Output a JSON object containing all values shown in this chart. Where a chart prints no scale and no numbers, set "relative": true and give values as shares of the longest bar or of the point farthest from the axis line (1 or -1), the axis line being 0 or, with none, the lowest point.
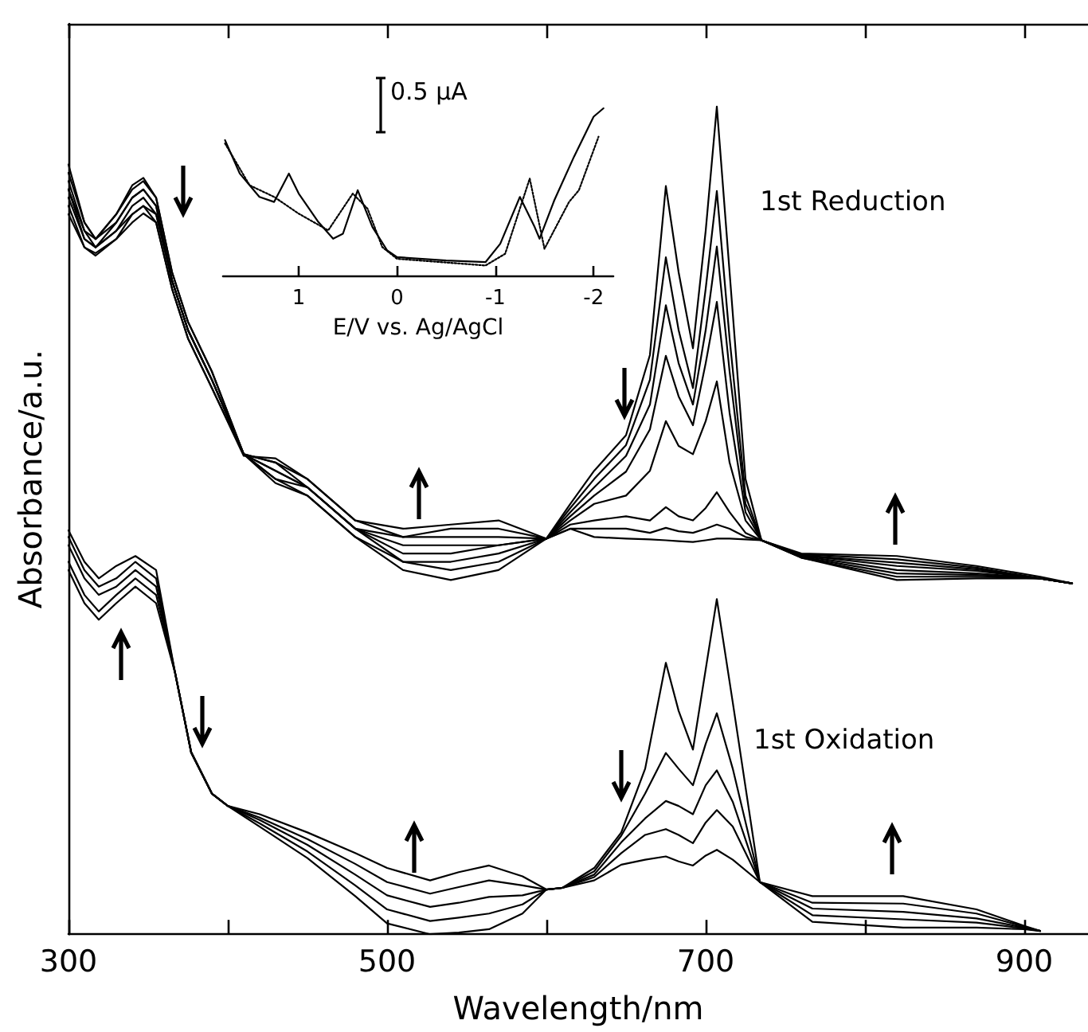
{
  "chart_data": [
    {
      "type": "line",
      "relative": true,
      "xlabel": "Wavelength/nm",
      "ylabel": "Absorbance/a.u.",
      "xlim": [
        300,
        940
      ],
      "xticks": [
        300,
        {
          "value": 400,
          "label": null
        },
        500,
        {
          "value": 600,
          "label": null
        },
        700,
        {
          "value": 800,
          "label": null
        },
        900
      ],
      "annotations": [
        "1st Reduction",
        "1st Oxidation"
      ],
      "series": [
        {
          "color": "#000000",
          "x": [
            300,
            310,
            317,
            330,
            340,
            347,
            355,
            365,
            375,
            390,
            410,
            430,
            450,
            480,
            510,
            540,
            570,
            600,
            615,
            630,
            650,
            665,
            675,
            683,
            692,
            700,
            707,
            715,
            725,
            735,
            760,
            820,
            870,
            910,
            930
          ],
          "values": [
            0.93,
            0.86,
            0.84,
            0.87,
            0.905,
            0.914,
            0.89,
            0.8,
            0.74,
            0.68,
            0.58,
            0.545,
            0.53,
            0.48,
            0.44,
            0.428,
            0.44,
            0.478,
            0.52,
            0.56,
            0.603,
            0.7,
            0.904,
            0.8,
            0.708,
            0.85,
            1.0,
            0.8,
            0.55,
            0.476,
            0.455,
            0.428,
            0.43,
            0.43,
            0.424
          ]
        },
        {
          "color": "#000000",
          "x": [
            300,
            310,
            317,
            330,
            340,
            347,
            355,
            365,
            375,
            390,
            410,
            430,
            450,
            480,
            510,
            540,
            570,
            600,
            615,
            630,
            650,
            665,
            675,
            683,
            692,
            700,
            707,
            715,
            725,
            735,
            760,
            820,
            870,
            910,
            930
          ],
          "values": [
            0.92,
            0.86,
            0.84,
            0.87,
            0.9,
            0.91,
            0.89,
            0.8,
            0.74,
            0.68,
            0.58,
            0.55,
            0.53,
            0.48,
            0.45,
            0.44,
            0.45,
            0.478,
            0.515,
            0.55,
            0.591,
            0.67,
            0.818,
            0.73,
            0.66,
            0.78,
            0.898,
            0.72,
            0.53,
            0.476,
            0.455,
            0.432,
            0.432,
            0.43,
            0.424
          ]
        },
        {
          "color": "#000000",
          "x": [
            300,
            310,
            317,
            330,
            340,
            347,
            355,
            365,
            375,
            390,
            410,
            430,
            450,
            480,
            510,
            540,
            570,
            600,
            615,
            630,
            650,
            665,
            675,
            683,
            692,
            700,
            707,
            715,
            725,
            735,
            760,
            820,
            870,
            910,
            930
          ],
          "values": [
            0.91,
            0.85,
            0.84,
            0.86,
            0.89,
            0.9,
            0.88,
            0.79,
            0.73,
            0.67,
            0.58,
            0.55,
            0.54,
            0.49,
            0.45,
            0.45,
            0.46,
            0.478,
            0.51,
            0.54,
            0.578,
            0.64,
            0.76,
            0.69,
            0.64,
            0.73,
            0.831,
            0.68,
            0.52,
            0.476,
            0.456,
            0.436,
            0.434,
            0.43,
            0.424
          ]
        },
        {
          "color": "#000000",
          "x": [
            300,
            310,
            317,
            330,
            340,
            347,
            355,
            365,
            375,
            390,
            410,
            430,
            450,
            480,
            510,
            540,
            570,
            600,
            615,
            630,
            650,
            665,
            675,
            683,
            692,
            700,
            707,
            715,
            725,
            735,
            760,
            820,
            870,
            910,
            930
          ],
          "values": [
            0.9,
            0.85,
            0.83,
            0.86,
            0.89,
            0.9,
            0.88,
            0.79,
            0.73,
            0.67,
            0.58,
            0.56,
            0.54,
            0.49,
            0.46,
            0.46,
            0.47,
            0.478,
            0.505,
            0.53,
            0.559,
            0.61,
            0.699,
            0.65,
            0.615,
            0.69,
            0.764,
            0.63,
            0.51,
            0.476,
            0.457,
            0.44,
            0.436,
            0.43,
            0.424
          ]
        },
        {
          "color": "#000000",
          "x": [
            300,
            310,
            317,
            330,
            340,
            347,
            355,
            365,
            375,
            390,
            410,
            430,
            450,
            480,
            510,
            540,
            570,
            600,
            615,
            630,
            650,
            665,
            675,
            683,
            692,
            700,
            707,
            715,
            725,
            735,
            760,
            820,
            870,
            910,
            930
          ],
          "values": [
            0.9,
            0.84,
            0.83,
            0.85,
            0.88,
            0.89,
            0.87,
            0.79,
            0.73,
            0.67,
            0.58,
            0.56,
            0.54,
            0.49,
            0.47,
            0.47,
            0.47,
            0.478,
            0.5,
            0.52,
            0.53,
            0.56,
            0.62,
            0.59,
            0.58,
            0.62,
            0.668,
            0.57,
            0.5,
            0.476,
            0.458,
            0.445,
            0.439,
            0.43,
            0.424
          ]
        },
        {
          "color": "#000000",
          "x": [
            300,
            310,
            317,
            330,
            340,
            347,
            355,
            365,
            375,
            390,
            410,
            430,
            450,
            480,
            510,
            540,
            570,
            600,
            615,
            630,
            650,
            665,
            675,
            683,
            692,
            700,
            707,
            715,
            725,
            735,
            760,
            820,
            870,
            910,
            930
          ],
          "values": [
            0.89,
            0.84,
            0.83,
            0.85,
            0.87,
            0.88,
            0.87,
            0.79,
            0.73,
            0.67,
            0.58,
            0.57,
            0.54,
            0.49,
            0.48,
            0.48,
            0.48,
            0.478,
            0.495,
            0.5,
            0.505,
            0.5,
            0.516,
            0.505,
            0.5,
            0.515,
            0.534,
            0.51,
            0.485,
            0.476,
            0.458,
            0.449,
            0.441,
            0.43,
            0.424
          ]
        },
        {
          "color": "#000000",
          "x": [
            300,
            310,
            317,
            330,
            340,
            347,
            355,
            365,
            375,
            390,
            410,
            430,
            450,
            480,
            510,
            540,
            570,
            600,
            615,
            630,
            650,
            665,
            675,
            683,
            692,
            700,
            707,
            715,
            725,
            735,
            760,
            820,
            870,
            910,
            930
          ],
          "values": [
            0.88,
            0.83,
            0.82,
            0.84,
            0.87,
            0.88,
            0.86,
            0.78,
            0.72,
            0.66,
            0.58,
            0.57,
            0.55,
            0.5,
            0.48,
            0.49,
            0.49,
            0.478,
            0.49,
            0.49,
            0.49,
            0.485,
            0.491,
            0.487,
            0.485,
            0.49,
            0.495,
            0.49,
            0.48,
            0.476,
            0.459,
            0.453,
            0.443,
            0.43,
            0.424
          ]
        },
        {
          "color": "#000000",
          "x": [
            300,
            310,
            317,
            330,
            340,
            347,
            355,
            365,
            375,
            390,
            410,
            430,
            450,
            480,
            510,
            540,
            570,
            600,
            615,
            630,
            650,
            665,
            675,
            683,
            692,
            700,
            707,
            715,
            725,
            735,
            760,
            820,
            870,
            910,
            930
          ],
          "values": [
            0.87,
            0.83,
            0.823,
            0.84,
            0.86,
            0.871,
            0.86,
            0.78,
            0.72,
            0.66,
            0.578,
            0.575,
            0.55,
            0.5,
            0.49,
            0.495,
            0.5,
            0.478,
            0.49,
            0.48,
            0.478,
            0.477,
            0.476,
            0.475,
            0.474,
            0.476,
            0.478,
            0.478,
            0.477,
            0.476,
            0.46,
            0.457,
            0.445,
            0.432,
            0.424
          ]
        },
        {
          "color": "#000000",
          "x": [
            300,
            310,
            319,
            330,
            342,
            355,
            367,
            377,
            390,
            400,
            420,
            450,
            480,
            500,
            527,
            545,
            564,
            585,
            600,
            610,
            630,
            647,
            662,
            675,
            683,
            692,
            700,
            707,
            717,
            734,
            767,
            824,
            870,
            900,
            910
          ],
          "values": [
            0.44,
            0.4,
            0.38,
            0.4,
            0.42,
            0.4,
            0.315,
            0.22,
            0.17,
            0.155,
            0.13,
            0.092,
            0.046,
            0.013,
            0,
            0.002,
            0.006,
            0.025,
            0.054,
            0.056,
            0.08,
            0.123,
            0.2,
            0.328,
            0.27,
            0.223,
            0.32,
            0.405,
            0.28,
            0.063,
            0.015,
            0.008,
            0.008,
            0.006,
            0.004
          ]
        },
        {
          "color": "#000000",
          "x": [
            300,
            310,
            319,
            330,
            342,
            355,
            367,
            377,
            390,
            400,
            420,
            450,
            480,
            500,
            527,
            545,
            564,
            585,
            600,
            610,
            630,
            647,
            662,
            675,
            683,
            692,
            700,
            707,
            717,
            734,
            767,
            824,
            870,
            900,
            910
          ],
          "values": [
            0.45,
            0.41,
            0.39,
            0.41,
            0.43,
            0.41,
            0.315,
            0.22,
            0.17,
            0.155,
            0.134,
            0.1,
            0.059,
            0.03,
            0.016,
            0.02,
            0.025,
            0.036,
            0.054,
            0.056,
            0.076,
            0.119,
            0.17,
            0.219,
            0.2,
            0.18,
            0.23,
            0.267,
            0.2,
            0.063,
            0.023,
            0.018,
            0.014,
            0.007,
            0.004
          ]
        },
        {
          "color": "#000000",
          "x": [
            300,
            310,
            319,
            330,
            342,
            355,
            367,
            377,
            390,
            400,
            420,
            450,
            480,
            500,
            527,
            545,
            564,
            585,
            600,
            610,
            630,
            647,
            662,
            675,
            683,
            692,
            700,
            707,
            717,
            734,
            767,
            824,
            870,
            900,
            910
          ],
          "values": [
            0.47,
            0.43,
            0.41,
            0.42,
            0.44,
            0.42,
            0.315,
            0.22,
            0.17,
            0.155,
            0.138,
            0.108,
            0.072,
            0.047,
            0.033,
            0.038,
            0.045,
            0.047,
            0.054,
            0.056,
            0.072,
            0.111,
            0.14,
            0.161,
            0.155,
            0.145,
            0.18,
            0.198,
            0.16,
            0.063,
            0.031,
            0.027,
            0.019,
            0.008,
            0.004
          ]
        },
        {
          "color": "#000000",
          "x": [
            300,
            310,
            319,
            330,
            342,
            355,
            367,
            377,
            390,
            400,
            420,
            450,
            480,
            500,
            527,
            545,
            564,
            585,
            600,
            610,
            630,
            647,
            662,
            675,
            683,
            692,
            700,
            707,
            717,
            734,
            767,
            824,
            870,
            900,
            910
          ],
          "values": [
            0.48,
            0.44,
            0.42,
            0.43,
            0.45,
            0.43,
            0.315,
            0.22,
            0.17,
            0.155,
            0.141,
            0.115,
            0.085,
            0.063,
            0.049,
            0.057,
            0.065,
            0.059,
            0.054,
            0.056,
            0.069,
            0.098,
            0.12,
            0.127,
            0.12,
            0.11,
            0.135,
            0.15,
            0.13,
            0.063,
            0.038,
            0.037,
            0.025,
            0.009,
            0.004
          ]
        },
        {
          "color": "#000000",
          "x": [
            300,
            310,
            319,
            330,
            342,
            355,
            367,
            377,
            390,
            400,
            420,
            450,
            480,
            500,
            527,
            545,
            564,
            585,
            600,
            610,
            630,
            647,
            662,
            675,
            683,
            692,
            700,
            707,
            717,
            734,
            767,
            824,
            870,
            900,
            910
          ],
          "values": [
            0.488,
            0.45,
            0.43,
            0.445,
            0.457,
            0.44,
            0.315,
            0.219,
            0.17,
            0.155,
            0.145,
            0.123,
            0.098,
            0.08,
            0.065,
            0.075,
            0.083,
            0.07,
            0.054,
            0.056,
            0.065,
            0.084,
            0.09,
            0.094,
            0.088,
            0.083,
            0.095,
            0.102,
            0.09,
            0.063,
            0.046,
            0.046,
            0.03,
            0.01,
            0.004
          ]
        }
      ]
    },
    {
      "type": "line",
      "relative": true,
      "xlabel": "E/V vs. Ag/AgCl",
      "xlim": [
        1.77,
        -2.2
      ],
      "xticks": [
        1,
        0,
        -1,
        -2
      ],
      "annotations": [
        "0.5 μA"
      ],
      "series": [
        {
          "color": "#000000",
          "x": [
            1.75,
            1.6,
            1.4,
            1.25,
            1.1,
            1.0,
            0.8,
            0.65,
            0.55,
            0.4,
            0.25,
            0.1,
            0,
            -0.5,
            -0.9,
            -1.05,
            -1.25,
            -1.4,
            -1.45,
            -1.6,
            -1.8,
            -2.0,
            -2.1
          ],
          "values": [
            0.81,
            0.61,
            0.47,
            0.44,
            0.61,
            0.49,
            0.32,
            0.22,
            0.25,
            0.51,
            0.29,
            0.15,
            0.11,
            0.09,
            0.08,
            0.19,
            0.47,
            0.29,
            0.22,
            0.45,
            0.71,
            0.95,
            1.0
          ]
        },
        {
          "color": "#000000",
          "line_style": "dotted",
          "x": [
            1.75,
            1.5,
            1.25,
            1.0,
            0.7,
            0.45,
            0.3,
            0.15,
            0,
            -0.9,
            -1.1,
            -1.35,
            -1.5,
            -1.75,
            -1.85,
            -2.05
          ],
          "values": [
            0.79,
            0.54,
            0.47,
            0.37,
            0.27,
            0.49,
            0.4,
            0.17,
            0.1,
            0.06,
            0.13,
            0.58,
            0.16,
            0.44,
            0.51,
            0.83
          ]
        }
      ]
    }
  ]
}
